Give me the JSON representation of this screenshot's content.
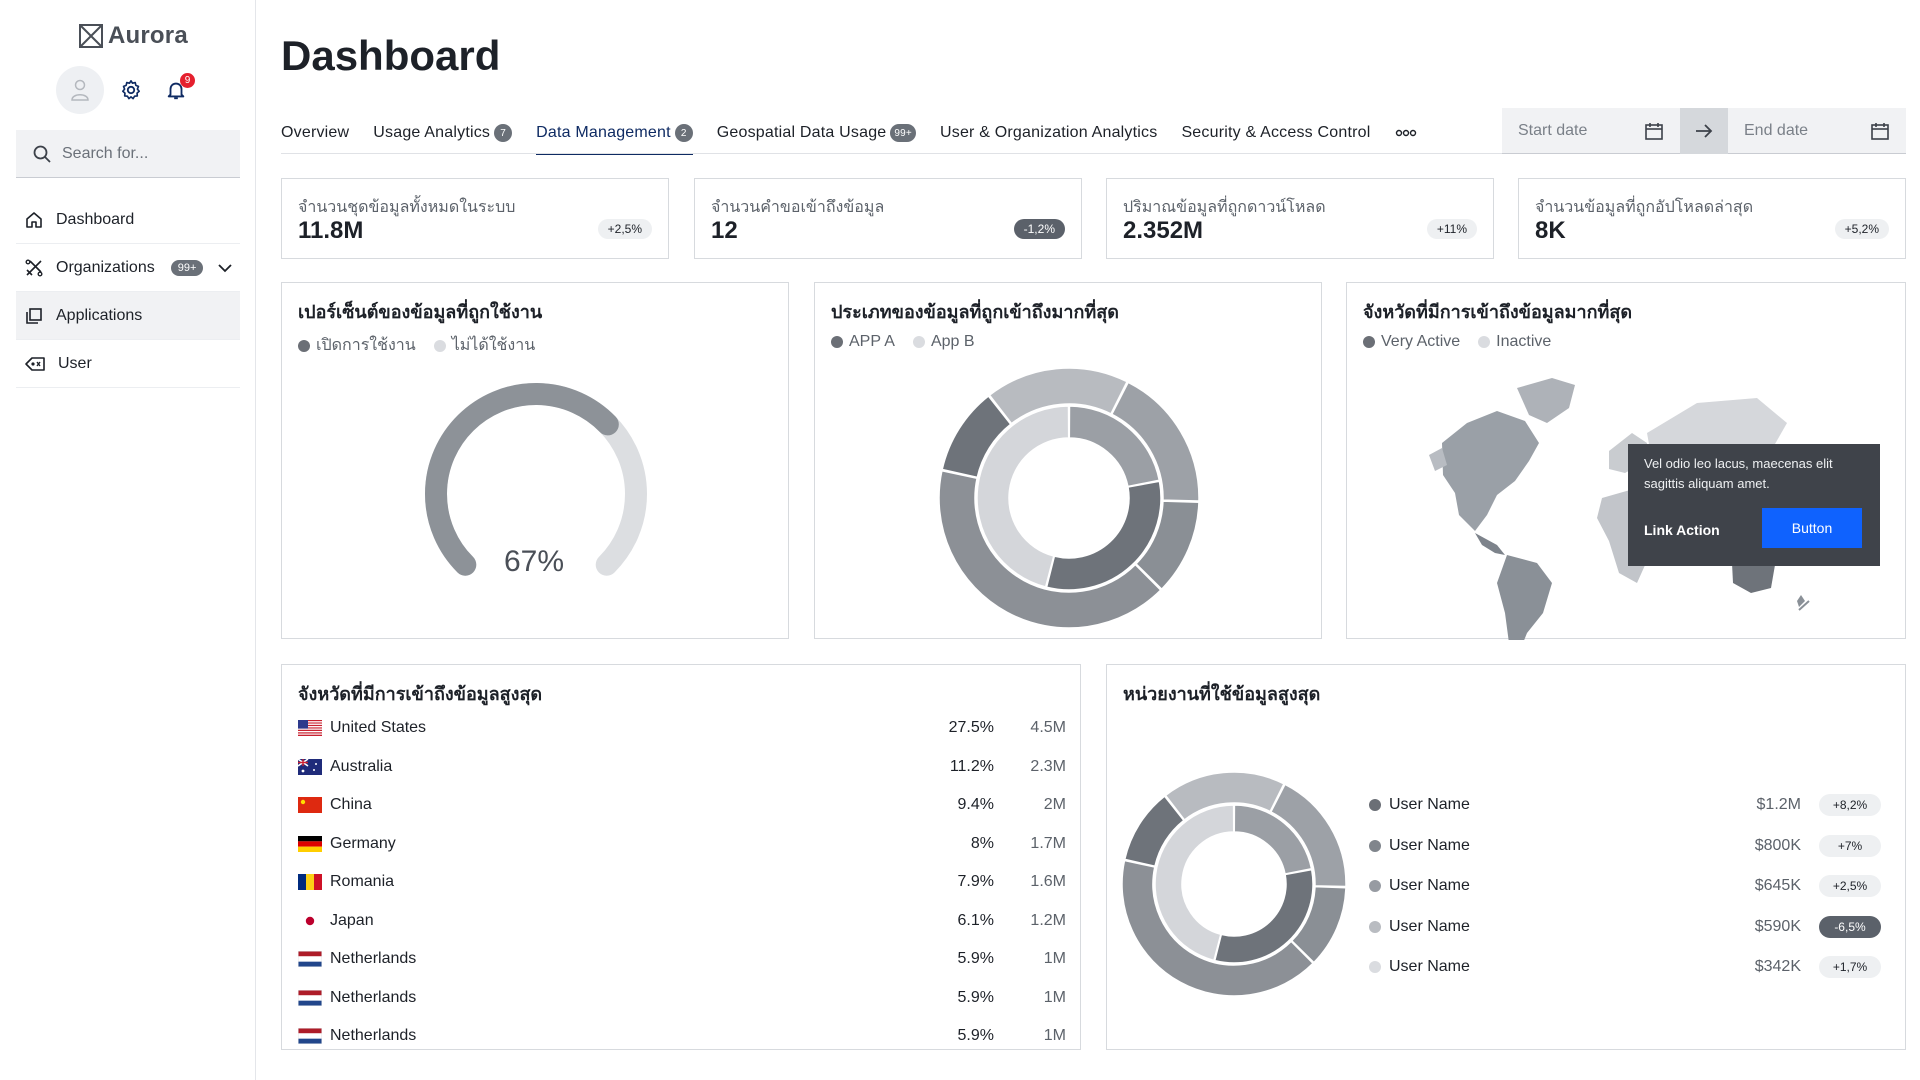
{
  "app": {
    "name": "Aurora",
    "notifications": "9"
  },
  "search": {
    "placeholder": "Search for..."
  },
  "nav": [
    {
      "label": "Dashboard",
      "icon": "home-icon"
    },
    {
      "label": "Organizations",
      "icon": "organization-icon",
      "badge": "99+"
    },
    {
      "label": "Applications",
      "icon": "applications-icon"
    },
    {
      "label": "User",
      "icon": "user-icon"
    }
  ],
  "page": {
    "title": "Dashboard"
  },
  "tabs": [
    {
      "label": "Overview"
    },
    {
      "label": "Usage Analytics",
      "count": "7"
    },
    {
      "label": "Data Management",
      "count": "2",
      "active": true
    },
    {
      "label": "Geospatial Data Usage",
      "count": "99+"
    },
    {
      "label": "User & Organization Analytics"
    },
    {
      "label": "Security & Access Control"
    }
  ],
  "dates": {
    "start_placeholder": "Start date",
    "end_placeholder": "End date"
  },
  "kpis": [
    {
      "label": "จำนวนชุดข้อมูลทั้งหมดในระบบ",
      "value": "11.8M",
      "delta": "+2,5%",
      "negative": false
    },
    {
      "label": "จำนวนคำขอเข้าถึงข้อมูล",
      "value": "12",
      "delta": "-1,2%",
      "negative": true
    },
    {
      "label": "ปริมาณข้อมูลที่ถูกดาวน์โหลด",
      "value": "2.352M",
      "delta": "+11%",
      "negative": false
    },
    {
      "label": "จำนวนข้อมูลที่ถูกอัปโหลดล่าสุด",
      "value": "8K",
      "delta": "+5,2%",
      "negative": false
    }
  ],
  "gauge_card": {
    "title": "เปอร์เซ็นต์ของข้อมูลที่ถูกใช้งาน",
    "legend": [
      "เปิดการใช้งาน",
      "ไม่ได้ใช้งาน"
    ],
    "value_label": "67%"
  },
  "donut_card": {
    "title": "ประเภทของข้อมูลที่ถูกเข้าถึงมากที่สุด",
    "legend": [
      "APP A",
      "App B"
    ]
  },
  "map_card": {
    "title": "จังหวัดที่มีการเข้าถึงข้อมูลมากที่สุด",
    "legend": [
      "Very Active",
      "Inactive"
    ],
    "tooltip": {
      "text": "Vel odio leo lacus, maecenas elit sagittis aliquam amet.",
      "link": "Link Action",
      "button": "Button"
    }
  },
  "countries_card": {
    "title": "จังหวัดที่มีการเข้าถึงข้อมูลสูงสุด",
    "rows": [
      {
        "country": "United States",
        "flag": "us-flag-icon",
        "pct": "27.5%",
        "value": "4.5M"
      },
      {
        "country": "Australia",
        "flag": "au-flag-icon",
        "pct": "11.2%",
        "value": "2.3M"
      },
      {
        "country": "China",
        "flag": "cn-flag-icon",
        "pct": "9.4%",
        "value": "2M"
      },
      {
        "country": "Germany",
        "flag": "de-flag-icon",
        "pct": "8%",
        "value": "1.7M"
      },
      {
        "country": "Romania",
        "flag": "ro-flag-icon",
        "pct": "7.9%",
        "value": "1.6M"
      },
      {
        "country": "Japan",
        "flag": "jp-flag-icon",
        "pct": "6.1%",
        "value": "1.2M"
      },
      {
        "country": "Netherlands",
        "flag": "nl-flag-icon",
        "pct": "5.9%",
        "value": "1M"
      },
      {
        "country": "Netherlands",
        "flag": "nl-flag-icon",
        "pct": "5.9%",
        "value": "1M"
      },
      {
        "country": "Netherlands",
        "flag": "nl-flag-icon",
        "pct": "5.9%",
        "value": "1M"
      }
    ]
  },
  "units_card": {
    "title": "หน่วยงานที่ใช้ข้อมูลสูงสุด",
    "rows": [
      {
        "name": "User Name",
        "amount": "$1.2M",
        "change": "+8,2%",
        "color": "#6b6f76",
        "negative": false
      },
      {
        "name": "User Name",
        "amount": "$800K",
        "change": "+7%",
        "color": "#80858c",
        "negative": false
      },
      {
        "name": "User Name",
        "amount": "$645K",
        "change": "+2,5%",
        "color": "#979ba2",
        "negative": false
      },
      {
        "name": "User Name",
        "amount": "$590K",
        "change": "-6,5%",
        "color": "#b9bcc1",
        "negative": true
      },
      {
        "name": "User Name",
        "amount": "$342K",
        "change": "+1,7%",
        "color": "#dadce0",
        "negative": false
      }
    ]
  },
  "colors": {
    "accent": "#0f62fe",
    "tab_active": "#0f2b63",
    "badge_red": "#e5202e",
    "gray_dark": "#6b6f76",
    "gray_light": "#dadce0"
  },
  "chart_data": [
    {
      "type": "gauge",
      "title": "เปอร์เซ็นต์ของข้อมูลที่ถูกใช้งาน",
      "value": 67,
      "max": 100,
      "legend": [
        "เปิดการใช้งาน",
        "ไม่ได้ใช้งาน"
      ]
    },
    {
      "type": "pie",
      "title": "ประเภทของข้อมูลที่ถูกเข้าถึงมากที่สุด",
      "series": [
        {
          "name": "outer",
          "values": [
            18,
            18,
            12,
            41,
            11
          ]
        },
        {
          "name": "inner",
          "values": [
            22,
            32,
            46
          ]
        }
      ],
      "legend": [
        "APP A",
        "App B"
      ]
    },
    {
      "type": "pie",
      "title": "หน่วยงานที่ใช้ข้อมูลสูงสุด",
      "series": [
        {
          "name": "outer",
          "values": [
            18,
            18,
            12,
            41,
            11
          ]
        },
        {
          "name": "inner",
          "values": [
            22,
            32,
            46
          ]
        }
      ]
    }
  ]
}
